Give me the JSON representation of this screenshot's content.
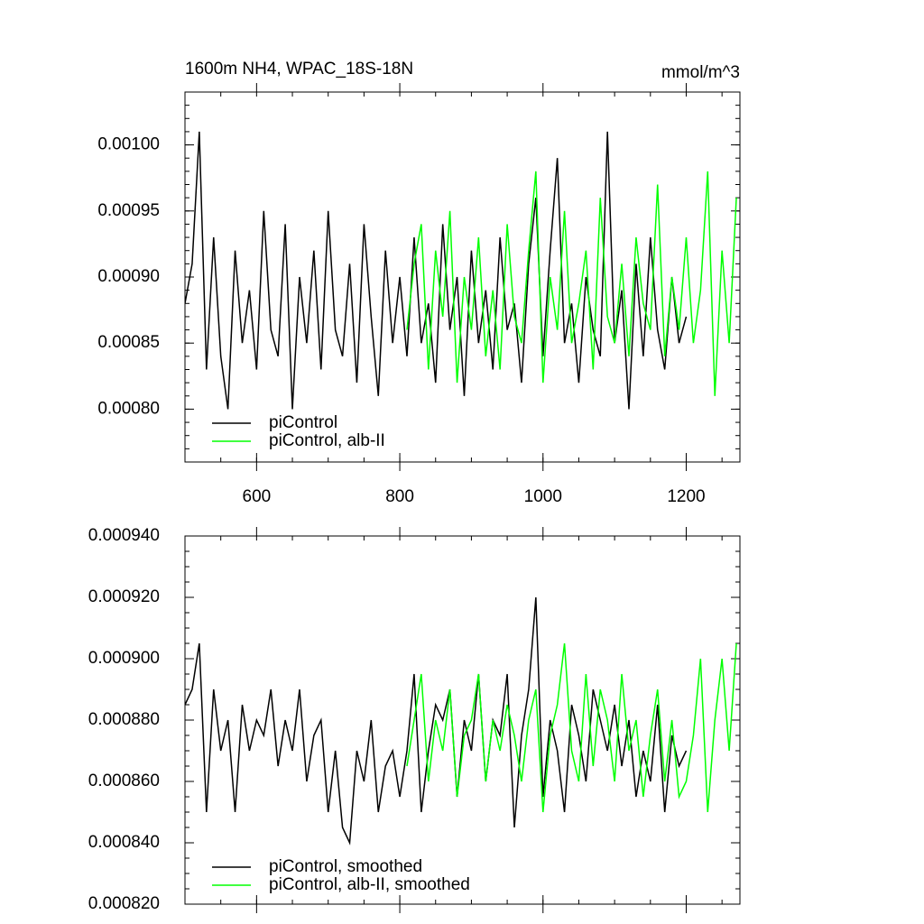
{
  "chart_data": [
    {
      "type": "line",
      "title": "1600m NH4, WPAC_18S-18N",
      "units": "mmol/m^3",
      "xlim": [
        500,
        1275
      ],
      "xticks": [
        600,
        800,
        1000,
        1200
      ],
      "ylim": [
        0.00076,
        0.00104
      ],
      "yticks": [
        {
          "value": 0.0008,
          "label": "0.00080"
        },
        {
          "value": 0.00085,
          "label": "0.00085"
        },
        {
          "value": 0.0009,
          "label": "0.00090"
        },
        {
          "value": 0.00095,
          "label": "0.00095"
        },
        {
          "value": 0.001,
          "label": "0.00100"
        }
      ],
      "series": [
        {
          "name": "piControl",
          "color": "#000000",
          "x": [
            500,
            510,
            520,
            530,
            540,
            550,
            560,
            570,
            580,
            590,
            600,
            610,
            620,
            630,
            640,
            650,
            660,
            670,
            680,
            690,
            700,
            710,
            720,
            730,
            740,
            750,
            760,
            770,
            780,
            790,
            800,
            810,
            820,
            830,
            840,
            850,
            860,
            870,
            880,
            890,
            900,
            910,
            920,
            930,
            940,
            950,
            960,
            970,
            980,
            990,
            1000,
            1010,
            1020,
            1030,
            1040,
            1050,
            1060,
            1070,
            1080,
            1090,
            1100,
            1110,
            1120,
            1130,
            1140,
            1150,
            1160,
            1170,
            1180,
            1190,
            1200
          ],
          "values": [
            0.00088,
            0.00091,
            0.00101,
            0.00083,
            0.00093,
            0.00084,
            0.0008,
            0.00092,
            0.00085,
            0.00089,
            0.00083,
            0.00095,
            0.00086,
            0.00084,
            0.00094,
            0.0008,
            0.0009,
            0.00085,
            0.00092,
            0.00083,
            0.00095,
            0.00086,
            0.00084,
            0.00091,
            0.00082,
            0.00094,
            0.00087,
            0.00081,
            0.00092,
            0.00085,
            0.0009,
            0.00084,
            0.00093,
            0.00085,
            0.00088,
            0.00082,
            0.00094,
            0.00086,
            0.0009,
            0.00081,
            0.00092,
            0.00085,
            0.00089,
            0.00083,
            0.00093,
            0.00086,
            0.00088,
            0.00082,
            0.00091,
            0.00096,
            0.00084,
            0.00092,
            0.00099,
            0.00085,
            0.00088,
            0.00082,
            0.0009,
            0.00086,
            0.00084,
            0.00101,
            0.00085,
            0.00089,
            0.0008,
            0.00091,
            0.00084,
            0.00093,
            0.00086,
            0.00083,
            0.0009,
            0.00085,
            0.00087
          ]
        },
        {
          "name": "piControl, alb-II",
          "color": "#00ff00",
          "x": [
            810,
            820,
            830,
            840,
            850,
            860,
            870,
            880,
            890,
            900,
            910,
            920,
            930,
            940,
            950,
            960,
            970,
            980,
            990,
            1000,
            1010,
            1020,
            1030,
            1040,
            1050,
            1060,
            1070,
            1080,
            1090,
            1100,
            1110,
            1120,
            1130,
            1140,
            1150,
            1160,
            1170,
            1180,
            1190,
            1200,
            1210,
            1220,
            1230,
            1240,
            1250,
            1260,
            1270
          ],
          "values": [
            0.00086,
            0.00091,
            0.00094,
            0.00083,
            0.00092,
            0.00087,
            0.00095,
            0.00082,
            0.0009,
            0.00086,
            0.00093,
            0.00084,
            0.00089,
            0.00083,
            0.00094,
            0.00087,
            0.00085,
            0.00092,
            0.00098,
            0.00082,
            0.0009,
            0.00086,
            0.00095,
            0.00085,
            0.00088,
            0.00092,
            0.00083,
            0.00096,
            0.00087,
            0.00085,
            0.00091,
            0.00084,
            0.00093,
            0.00088,
            0.00086,
            0.00097,
            0.00084,
            0.0009,
            0.00086,
            0.00093,
            0.00085,
            0.00089,
            0.00098,
            0.00081,
            0.00092,
            0.00085,
            0.00096
          ]
        }
      ]
    },
    {
      "type": "line",
      "xlim": [
        500,
        1275
      ],
      "xticks": [
        600,
        800,
        1000,
        1200
      ],
      "ylim": [
        0.00082,
        0.00094
      ],
      "yticks": [
        {
          "value": 0.00082,
          "label": "0.000820"
        },
        {
          "value": 0.00084,
          "label": "0.000840"
        },
        {
          "value": 0.00086,
          "label": "0.000860"
        },
        {
          "value": 0.00088,
          "label": "0.000880"
        },
        {
          "value": 0.0009,
          "label": "0.000900"
        },
        {
          "value": 0.00092,
          "label": "0.000920"
        },
        {
          "value": 0.00094,
          "label": "0.000940"
        }
      ],
      "series": [
        {
          "name": "piControl, smoothed",
          "color": "#000000",
          "x": [
            500,
            510,
            520,
            530,
            540,
            550,
            560,
            570,
            580,
            590,
            600,
            610,
            620,
            630,
            640,
            650,
            660,
            670,
            680,
            690,
            700,
            710,
            720,
            730,
            740,
            750,
            760,
            770,
            780,
            790,
            800,
            810,
            820,
            830,
            840,
            850,
            860,
            870,
            880,
            890,
            900,
            910,
            920,
            930,
            940,
            950,
            960,
            970,
            980,
            990,
            1000,
            1010,
            1020,
            1030,
            1040,
            1050,
            1060,
            1070,
            1080,
            1090,
            1100,
            1110,
            1120,
            1130,
            1140,
            1150,
            1160,
            1170,
            1180,
            1190,
            1200
          ],
          "values": [
            0.000885,
            0.00089,
            0.000905,
            0.00085,
            0.00089,
            0.00087,
            0.00088,
            0.00085,
            0.000885,
            0.00087,
            0.00088,
            0.000875,
            0.00089,
            0.000865,
            0.00088,
            0.00087,
            0.00089,
            0.00086,
            0.000875,
            0.00088,
            0.00085,
            0.00087,
            0.000845,
            0.00084,
            0.00087,
            0.00086,
            0.00088,
            0.00085,
            0.000865,
            0.00087,
            0.000855,
            0.00087,
            0.000895,
            0.00085,
            0.00087,
            0.000885,
            0.00088,
            0.00089,
            0.000855,
            0.00088,
            0.00087,
            0.000895,
            0.00086,
            0.00088,
            0.000875,
            0.000895,
            0.000845,
            0.000875,
            0.00089,
            0.00092,
            0.000855,
            0.00088,
            0.00087,
            0.00085,
            0.000885,
            0.000875,
            0.00086,
            0.00089,
            0.00088,
            0.00087,
            0.000885,
            0.000865,
            0.00088,
            0.000855,
            0.00087,
            0.00086,
            0.000885,
            0.00085,
            0.000875,
            0.000865,
            0.00087
          ]
        },
        {
          "name": "piControl, alb-II, smoothed",
          "color": "#00ff00",
          "x": [
            810,
            820,
            830,
            840,
            850,
            860,
            870,
            880,
            890,
            900,
            910,
            920,
            930,
            940,
            950,
            960,
            970,
            980,
            990,
            1000,
            1010,
            1020,
            1030,
            1040,
            1050,
            1060,
            1070,
            1080,
            1090,
            1100,
            1110,
            1120,
            1130,
            1140,
            1150,
            1160,
            1170,
            1180,
            1190,
            1200,
            1210,
            1220,
            1230,
            1240,
            1250,
            1260,
            1270
          ],
          "values": [
            0.000865,
            0.00088,
            0.000895,
            0.00086,
            0.00088,
            0.00087,
            0.00089,
            0.000855,
            0.000875,
            0.00088,
            0.000895,
            0.00086,
            0.00088,
            0.00087,
            0.000885,
            0.000875,
            0.00086,
            0.00088,
            0.00089,
            0.00085,
            0.000875,
            0.000885,
            0.000905,
            0.00087,
            0.00086,
            0.000895,
            0.000865,
            0.00089,
            0.00088,
            0.00086,
            0.000895,
            0.00087,
            0.00088,
            0.000855,
            0.000875,
            0.00089,
            0.00086,
            0.00088,
            0.000855,
            0.00086,
            0.000875,
            0.0009,
            0.00085,
            0.00088,
            0.0009,
            0.00087,
            0.000905
          ]
        }
      ]
    }
  ]
}
